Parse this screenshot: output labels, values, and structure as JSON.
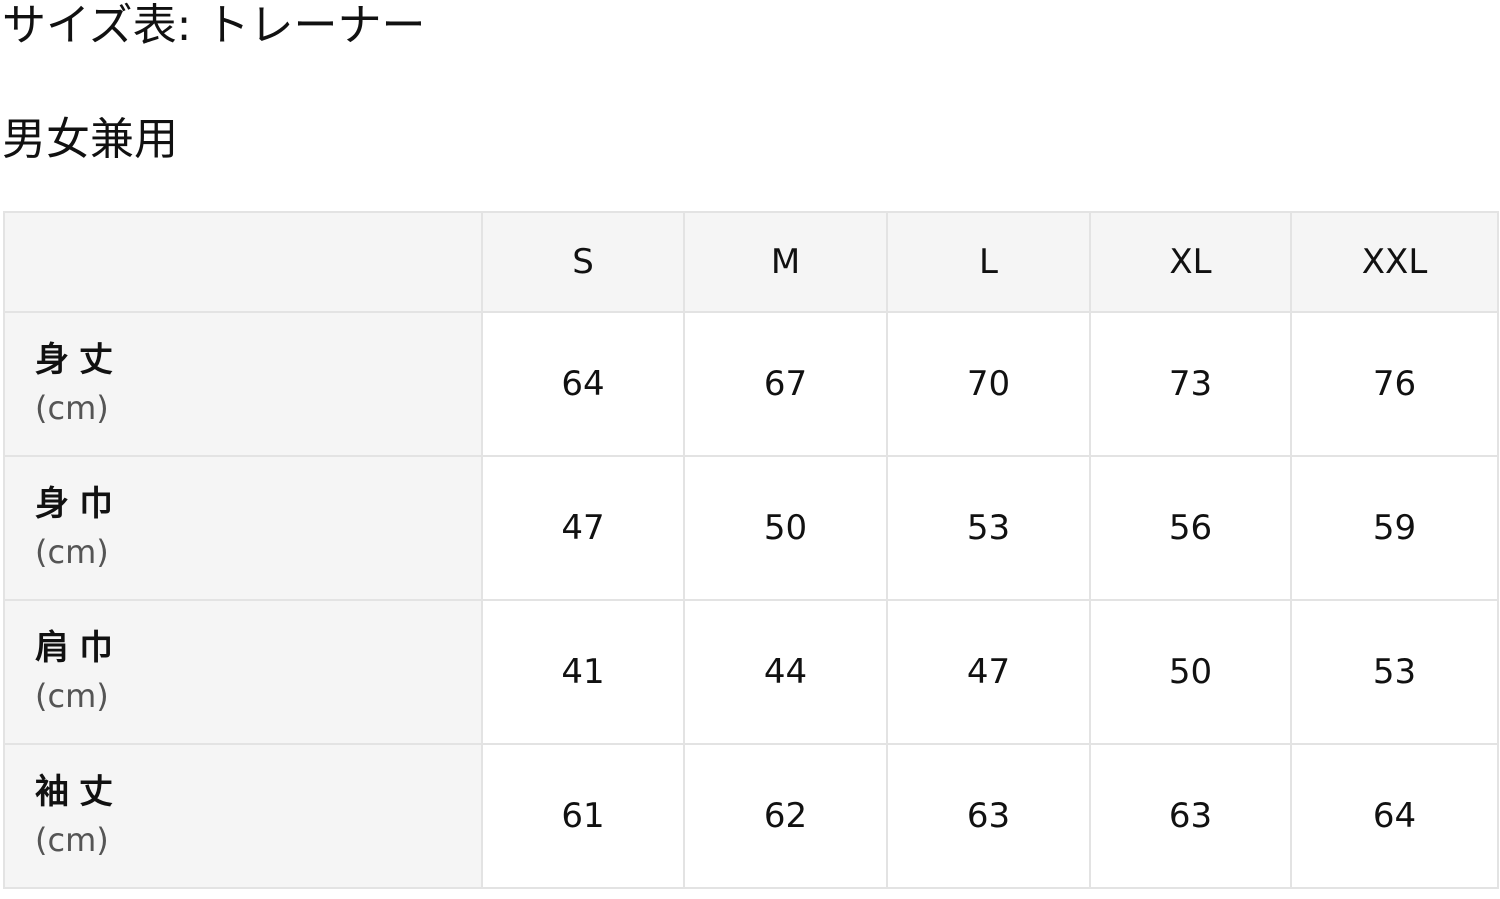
{
  "title": "サイズ表: トレーナー",
  "subtitle": "男女兼用",
  "table": {
    "headers": [
      "",
      "S",
      "M",
      "L",
      "XL",
      "XXL"
    ],
    "rows": [
      {
        "label": "身丈",
        "unit": "(cm)",
        "values": [
          "64",
          "67",
          "70",
          "73",
          "76"
        ]
      },
      {
        "label": "身巾",
        "unit": "(cm)",
        "values": [
          "47",
          "50",
          "53",
          "56",
          "59"
        ]
      },
      {
        "label": "肩巾",
        "unit": "(cm)",
        "values": [
          "41",
          "44",
          "47",
          "50",
          "53"
        ]
      },
      {
        "label": "袖丈",
        "unit": "(cm)",
        "values": [
          "61",
          "62",
          "63",
          "63",
          "64"
        ]
      }
    ]
  }
}
